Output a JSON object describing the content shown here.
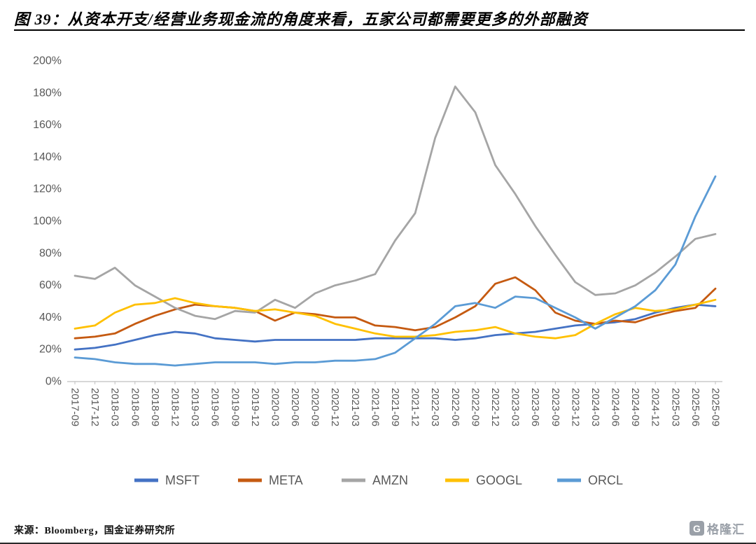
{
  "header": {
    "title": "图 39：从资本开支/经营业务现金流的角度来看，五家公司都需要更多的外部融资"
  },
  "footer": {
    "source": "来源：Bloomberg，国金证券研究所",
    "logo_letter": "G",
    "logo_text": "格隆汇"
  },
  "chart_data": {
    "type": "line",
    "title": "",
    "xlabel": "",
    "ylabel": "",
    "grid": false,
    "legend_position": "bottom",
    "ylim": [
      0,
      200
    ],
    "ytick_step": 20,
    "ytick_labels": [
      "0%",
      "20%",
      "40%",
      "60%",
      "80%",
      "100%",
      "120%",
      "140%",
      "160%",
      "180%",
      "200%"
    ],
    "tick_label_color": "#595959",
    "axis_color": "#bfbfbf",
    "categories": [
      "2017-09",
      "2017-12",
      "2018-03",
      "2018-06",
      "2018-09",
      "2018-12",
      "2019-03",
      "2019-06",
      "2019-09",
      "2019-12",
      "2020-03",
      "2020-06",
      "2020-09",
      "2020-12",
      "2021-03",
      "2021-06",
      "2021-09",
      "2021-12",
      "2022-03",
      "2022-06",
      "2022-09",
      "2022-12",
      "2023-03",
      "2023-06",
      "2023-09",
      "2023-12",
      "2024-03",
      "2024-06",
      "2024-09",
      "2024-12",
      "2025-03",
      "2025-06",
      "2025-09"
    ],
    "series": [
      {
        "name": "MSFT",
        "color": "#4472C4",
        "values": [
          20,
          21,
          23,
          26,
          29,
          31,
          30,
          27,
          26,
          25,
          26,
          26,
          26,
          26,
          26,
          27,
          27,
          27,
          27,
          26,
          27,
          29,
          30,
          31,
          33,
          35,
          36,
          37,
          39,
          43,
          46,
          48,
          47
        ]
      },
      {
        "name": "META",
        "color": "#C55A11",
        "values": [
          27,
          28,
          30,
          36,
          41,
          45,
          48,
          47,
          46,
          44,
          38,
          43,
          42,
          40,
          40,
          35,
          34,
          32,
          34,
          40,
          47,
          61,
          65,
          57,
          43,
          38,
          36,
          38,
          37,
          41,
          44,
          46,
          58
        ]
      },
      {
        "name": "AMZN",
        "color": "#A5A5A5",
        "values": [
          66,
          64,
          71,
          60,
          53,
          46,
          41,
          39,
          44,
          43,
          51,
          46,
          55,
          60,
          63,
          67,
          88,
          105,
          152,
          184,
          168,
          135,
          117,
          97,
          79,
          62,
          54,
          55,
          60,
          68,
          78,
          89,
          92
        ]
      },
      {
        "name": "GOOGL",
        "color": "#FFC000",
        "values": [
          33,
          35,
          43,
          48,
          49,
          52,
          49,
          47,
          46,
          44,
          45,
          43,
          41,
          36,
          33,
          30,
          28,
          28,
          29,
          31,
          32,
          34,
          30,
          28,
          27,
          29,
          36,
          42,
          46,
          44,
          45,
          48,
          51
        ]
      },
      {
        "name": "ORCL",
        "color": "#5B9BD5",
        "values": [
          15,
          14,
          12,
          11,
          11,
          10,
          11,
          12,
          12,
          12,
          11,
          12,
          12,
          13,
          13,
          14,
          18,
          27,
          36,
          47,
          49,
          46,
          53,
          52,
          46,
          40,
          33,
          40,
          47,
          57,
          73,
          103,
          128
        ]
      }
    ]
  }
}
